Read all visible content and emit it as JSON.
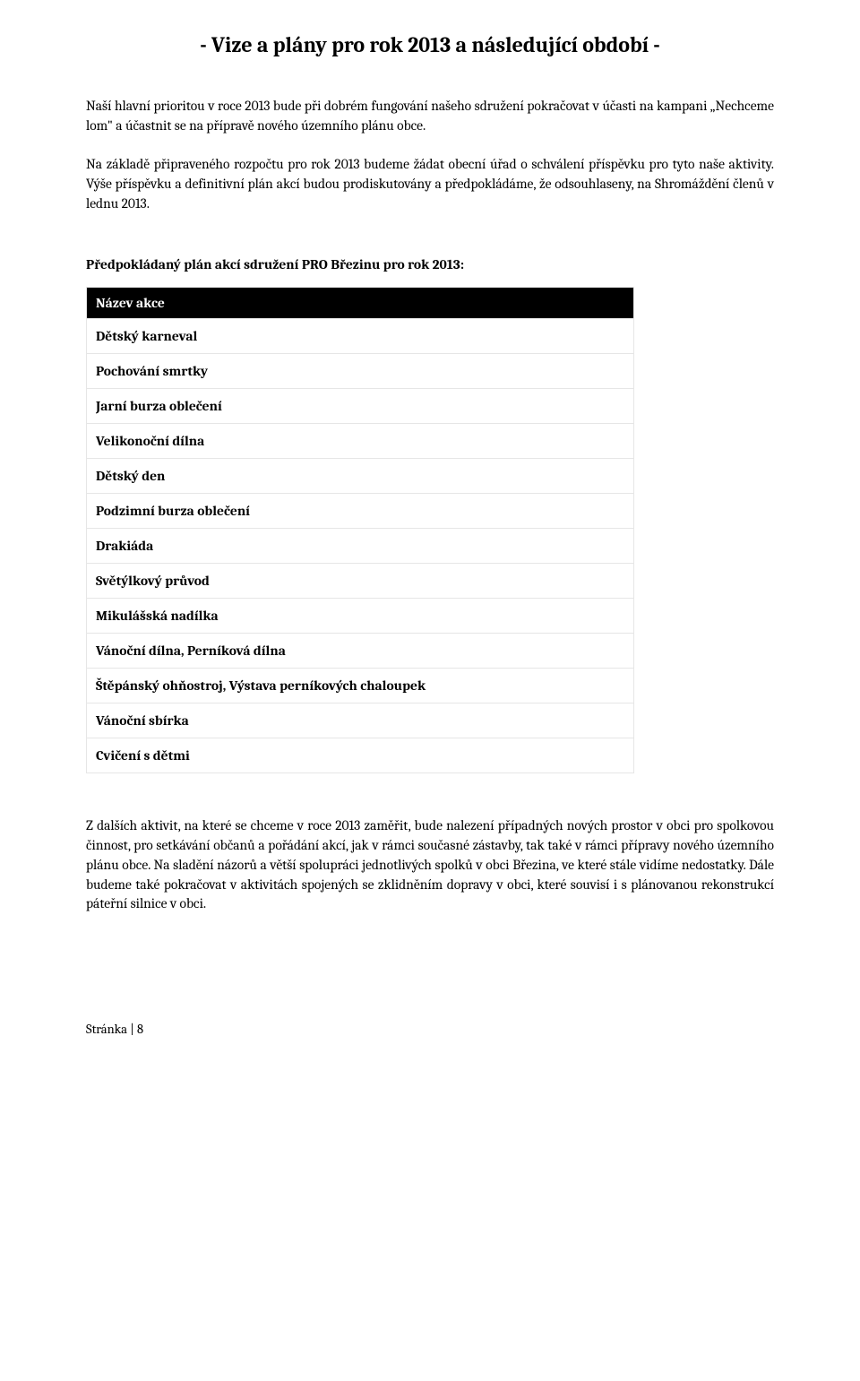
{
  "title": "- Vize a plány pro rok 2013 a následující období -",
  "para1": "Naší hlavní prioritou v roce 2013 bude při dobrém fungování našeho sdružení pokračovat v účasti na kampani „Nechceme lom\" a účastnit se na přípravě nového územního plánu obce.",
  "para2": "Na základě připraveného rozpočtu pro rok 2013 budeme žádat obecní úřad o schválení příspěvku pro tyto naše aktivity. Výše příspěvku a definitivní plán akcí budou prodiskutovány a předpokládáme, že odsouhlaseny, na Shromáždění členů v lednu 2013.",
  "subtitle": "Předpokládaný plán akcí sdružení PRO Březinu pro rok 2013:",
  "table": {
    "header": "Název akce",
    "rows": [
      "Dětský karneval",
      "Pochování smrtky",
      "Jarní burza oblečení",
      "Velikonoční dílna",
      "Dětský den",
      "Podzimní burza oblečení",
      "Drakiáda",
      "Světýlkový průvod",
      "Mikulášská nadílka",
      "Vánoční dílna, Perníková dílna",
      "Štěpánský ohňostroj, Výstava perníkových chaloupek",
      "Vánoční sbírka",
      "Cvičení s dětmi"
    ]
  },
  "para3": "Z dalších aktivit, na které se chceme v roce 2013 zaměřit, bude nalezení případných nových prostor v obci pro spolkovou činnost, pro setkávání občanů a pořádání akcí, jak v rámci současné zástavby, tak také v rámci přípravy nového územního plánu obce. Na sladění názorů a větší spolupráci jednotlivých spolků v obci Březina, ve které stále vidíme nedostatky. Dále budeme také pokračovat v aktivitách spojených se zklidněním dopravy v obci, které souvisí i s plánovanou rekonstrukcí páteřní silnice v obci.",
  "footer": "Stránka | 8"
}
